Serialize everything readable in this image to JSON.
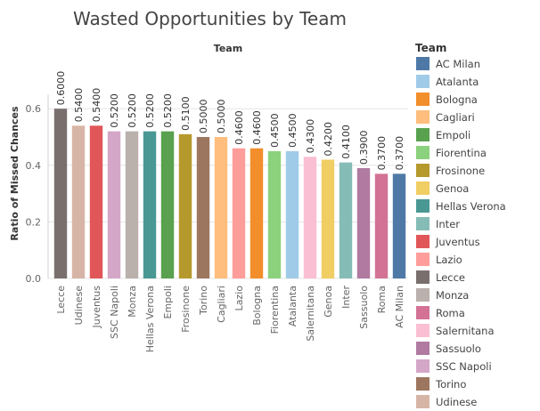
{
  "chart_data": {
    "type": "bar",
    "title": "Wasted Opportunities by Team",
    "column_header": "Team",
    "ylabel": "Ratio of Missed Chances",
    "ylim": [
      0,
      0.65
    ],
    "yticks": [
      "0.0",
      "0.2",
      "0.4",
      "0.6"
    ],
    "ytick_values": [
      0,
      0.2,
      0.4,
      0.6
    ],
    "grid": true,
    "categories": [
      "Lecce",
      "Udinese",
      "Juventus",
      "SSC Napoli",
      "Monza",
      "Hellas Verona",
      "Empoli",
      "Frosinone",
      "Torino",
      "Cagliari",
      "Lazio",
      "Bologna",
      "Fiorentina",
      "Atalanta",
      "Salernitana",
      "Genoa",
      "Inter",
      "Sassuolo",
      "Roma",
      "AC Milan"
    ],
    "values": [
      0.6,
      0.54,
      0.54,
      0.52,
      0.52,
      0.52,
      0.52,
      0.51,
      0.5,
      0.5,
      0.46,
      0.46,
      0.45,
      0.45,
      0.43,
      0.42,
      0.41,
      0.39,
      0.37,
      0.37
    ],
    "value_labels": [
      "0.6000",
      "0.5400",
      "0.5400",
      "0.5200",
      "0.5200",
      "0.5200",
      "0.5200",
      "0.5100",
      "0.5000",
      "0.5000",
      "0.4600",
      "0.4600",
      "0.4500",
      "0.4500",
      "0.4300",
      "0.4200",
      "0.4100",
      "0.3900",
      "0.3700",
      "0.3700"
    ],
    "legend": {
      "title": "Team",
      "placement": "right",
      "entries": [
        {
          "name": "AC Milan",
          "color": "#4e79a7"
        },
        {
          "name": "Atalanta",
          "color": "#a0cbe8"
        },
        {
          "name": "Bologna",
          "color": "#f28e2b"
        },
        {
          "name": "Cagliari",
          "color": "#ffbe7d"
        },
        {
          "name": "Empoli",
          "color": "#59a14f"
        },
        {
          "name": "Fiorentina",
          "color": "#8cd17d"
        },
        {
          "name": "Frosinone",
          "color": "#b6992d"
        },
        {
          "name": "Genoa",
          "color": "#f1ce63"
        },
        {
          "name": "Hellas Verona",
          "color": "#499894"
        },
        {
          "name": "Inter",
          "color": "#86bcb6"
        },
        {
          "name": "Juventus",
          "color": "#e15759"
        },
        {
          "name": "Lazio",
          "color": "#ff9d9a"
        },
        {
          "name": "Lecce",
          "color": "#79706e"
        },
        {
          "name": "Monza",
          "color": "#bab0ac"
        },
        {
          "name": "Roma",
          "color": "#d37295"
        },
        {
          "name": "Salernitana",
          "color": "#fabfd2"
        },
        {
          "name": "Sassuolo",
          "color": "#b07aa1"
        },
        {
          "name": "SSC Napoli",
          "color": "#d4a6c8"
        },
        {
          "name": "Torino",
          "color": "#9d7660"
        },
        {
          "name": "Udinese",
          "color": "#d7b5a6"
        }
      ]
    }
  }
}
